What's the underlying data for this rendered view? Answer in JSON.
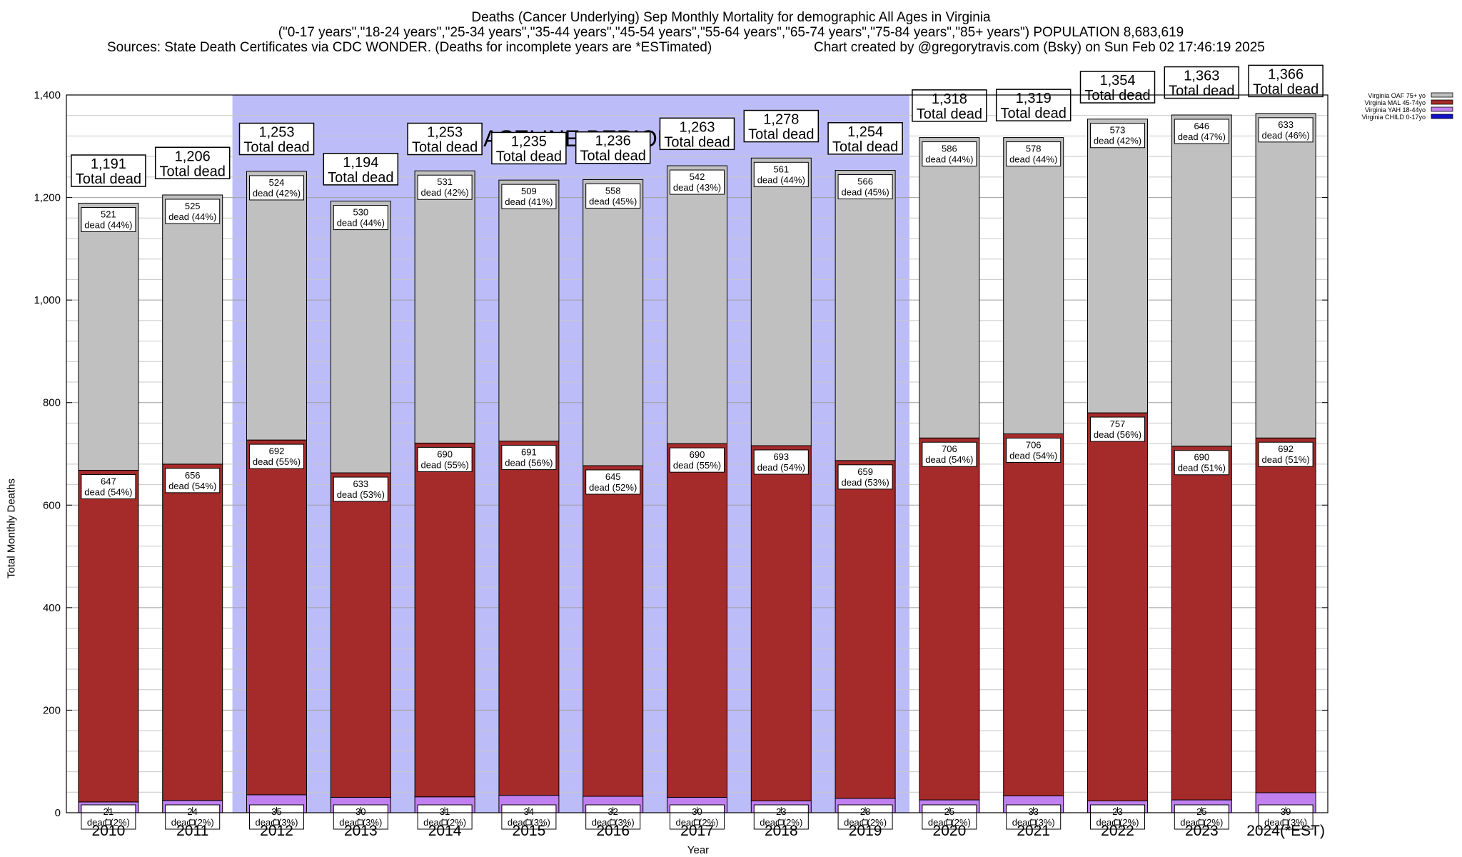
{
  "title": {
    "line1": "Deaths (Cancer Underlying) Sep Monthly Mortality for demographic All Ages in Virginia",
    "line2": "(\"0-17 years\",\"18-24 years\",\"25-34 years\",\"35-44 years\",\"45-54 years\",\"55-64 years\",\"65-74 years\",\"75-84 years\",\"85+ years\") POPULATION 8,683,619",
    "line3": "Sources: State Death Certificates via CDC WONDER. (Deaths for incomplete years are *ESTimated)",
    "line4": "Chart created by @gregorytravis.com (Bsky) on Sun Feb 02 17:46:19 2025"
  },
  "chart_data": {
    "type": "bar",
    "stacked": true,
    "xlabel": "Year",
    "ylabel": "Total Monthly Deaths",
    "ylim": [
      0,
      1400
    ],
    "yticks": [
      0,
      200,
      400,
      600,
      800,
      1000,
      1200,
      1400
    ],
    "ytick_labels": [
      "0",
      "200",
      "400",
      "600",
      "800",
      "1,000",
      "1,200",
      "1,400"
    ],
    "grid": true,
    "legend_position": "top-right",
    "categories": [
      "2010",
      "2011",
      "2012",
      "2013",
      "2014",
      "2015",
      "2016",
      "2017",
      "2018",
      "2019",
      "2020",
      "2021",
      "2022",
      "2023",
      "2024(*EST)"
    ],
    "baseline_label": "BASELINE PERIOD",
    "baseline_range": [
      "2012",
      "2019"
    ],
    "series": [
      {
        "name": "Virginia CHILD 0-17yo",
        "color": "#1010c8",
        "values": [
          0,
          0,
          0,
          0,
          0,
          0,
          0,
          0,
          0,
          0,
          0,
          0,
          0,
          0,
          0
        ],
        "labels": [
          "",
          "",
          "",
          "",
          "",
          "",
          "",
          "",
          "",
          "",
          "",
          "",
          "",
          "",
          ""
        ]
      },
      {
        "name": "Virginia YAH 18-44yo",
        "color": "#c080f0",
        "values": [
          21,
          24,
          35,
          30,
          31,
          34,
          32,
          30,
          23,
          28,
          25,
          33,
          23,
          25,
          39
        ],
        "labels": [
          "dead (2%)",
          "dead (2%)",
          "dead (3%)",
          "dead (3%)",
          "dead (2%)",
          "dead (3%)",
          "dead (3%)",
          "dead (2%)",
          "dead (2%)",
          "dead (2%)",
          "dead (2%)",
          "dead (3%)",
          "dead (2%)",
          "dead (2%)",
          "dead (3%)"
        ]
      },
      {
        "name": "Virginia MAL 45-74yo",
        "color": "#a52a2a",
        "values": [
          647,
          656,
          692,
          633,
          690,
          691,
          645,
          690,
          693,
          659,
          706,
          706,
          757,
          690,
          692
        ],
        "labels": [
          "dead (54%)",
          "dead (54%)",
          "dead (55%)",
          "dead (53%)",
          "dead (55%)",
          "dead (56%)",
          "dead (52%)",
          "dead (55%)",
          "dead (54%)",
          "dead (53%)",
          "dead (54%)",
          "dead (54%)",
          "dead (56%)",
          "dead (51%)",
          "dead (51%)"
        ]
      },
      {
        "name": "Virginia OAF 75+ yo",
        "color": "#c0c0c0",
        "values": [
          521,
          525,
          524,
          530,
          531,
          509,
          558,
          542,
          561,
          566,
          586,
          578,
          573,
          646,
          633
        ],
        "labels": [
          "dead (44%)",
          "dead (44%)",
          "dead (42%)",
          "dead (44%)",
          "dead (42%)",
          "dead (41%)",
          "dead (45%)",
          "dead (43%)",
          "dead (44%)",
          "dead (45%)",
          "dead (44%)",
          "dead (44%)",
          "dead (42%)",
          "dead (47%)",
          "dead (46%)"
        ]
      }
    ],
    "totals": [
      1191,
      1206,
      1253,
      1194,
      1253,
      1235,
      1236,
      1263,
      1278,
      1254,
      1318,
      1319,
      1354,
      1363,
      1366
    ],
    "total_labels": [
      "1,191",
      "1,206",
      "1,253",
      "1,194",
      "1,253",
      "1,235",
      "1,236",
      "1,263",
      "1,278",
      "1,254",
      "1,318",
      "1,319",
      "1,354",
      "1,363",
      "1,366"
    ],
    "total_suffix": "Total dead"
  }
}
